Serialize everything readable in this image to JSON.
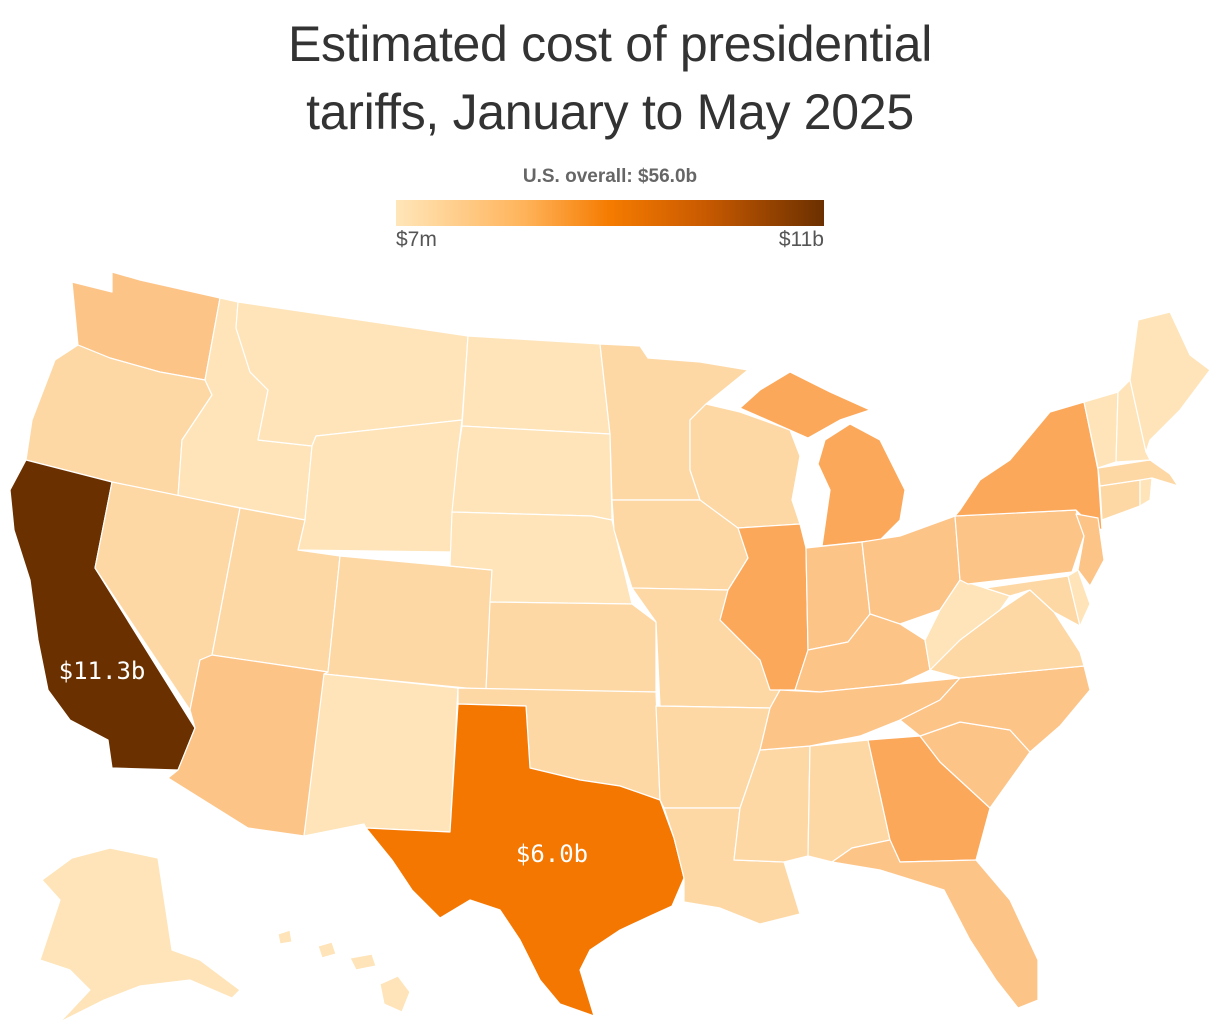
{
  "title": {
    "line1": "Estimated cost of presidential",
    "line2": "tariffs, January to May 2025"
  },
  "legend": {
    "overall_label": "U.S. overall: $56.0b",
    "min_label": "$7m",
    "max_label": "$11b",
    "colors": [
      "#ffe6b9",
      "#ffb35a",
      "#f57b00",
      "#c95a00",
      "#6b3000"
    ]
  },
  "annotations": {
    "california": "$11.3b",
    "texas": "$6.0b"
  },
  "fill_colors": {
    "lightest": "#fee4b8",
    "light": "#fdd8a4",
    "medium_light": "#fdc487",
    "medium": "#fca85a",
    "texas": "#f47702",
    "california": "#6b3000"
  },
  "state_tiers": {
    "CA": "california",
    "TX": "texas",
    "MI": "medium",
    "IL": "medium",
    "GA": "medium",
    "NY": "medium",
    "WA": "medium_light",
    "OH": "medium_light",
    "IN": "medium_light",
    "NJ": "medium_light",
    "PA": "medium_light",
    "TN": "medium_light",
    "FL": "medium_light",
    "NC": "medium_light",
    "SC": "medium_light",
    "KY": "medium_light",
    "AZ": "medium_light",
    "OR": "light",
    "NV": "light",
    "WI": "light",
    "MN": "light",
    "MO": "light",
    "AL": "light",
    "VA": "light",
    "MA": "light",
    "CT": "light",
    "MD": "light",
    "UT": "light",
    "IA": "light",
    "LA": "light",
    "MS": "light",
    "AR": "light",
    "OK": "light",
    "KS": "light",
    "CO": "light",
    "ID": "lightest",
    "MT": "lightest",
    "WY": "lightest",
    "NM": "lightest",
    "ND": "lightest",
    "SD": "lightest",
    "NE": "lightest",
    "WV": "lightest",
    "VT": "lightest",
    "NH": "lightest",
    "ME": "lightest",
    "RI": "lightest",
    "DE": "lightest",
    "AK": "lightest",
    "HI": "lightest"
  }
}
